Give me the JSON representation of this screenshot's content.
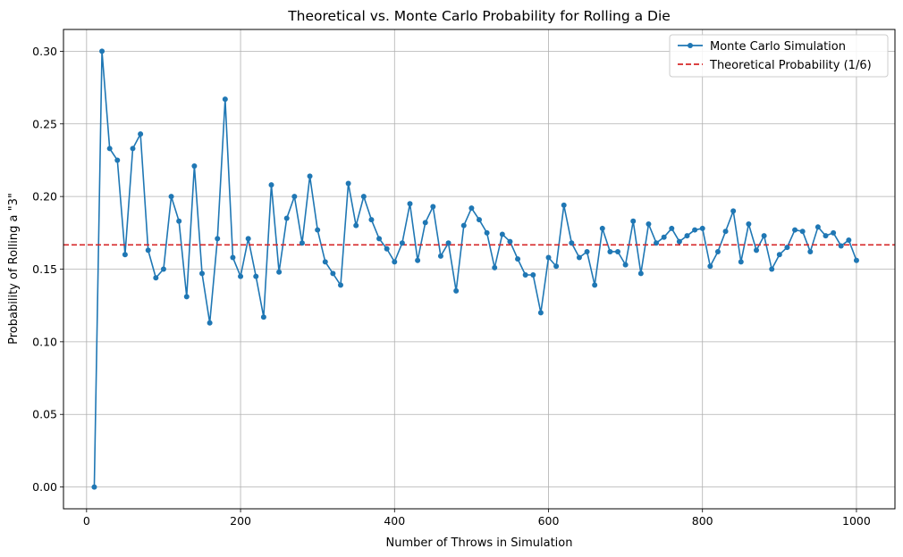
{
  "chart_data": {
    "type": "line",
    "title": "Theoretical vs. Monte Carlo Probability for Rolling a Die",
    "xlabel": "Number of Throws in Simulation",
    "ylabel": "Probability of Rolling a \"3\"",
    "xlim": [
      -30,
      1050
    ],
    "ylim": [
      -0.015,
      0.315
    ],
    "xticks": [
      0,
      200,
      400,
      600,
      800,
      1000
    ],
    "xtick_labels": [
      "0",
      "200",
      "400",
      "600",
      "800",
      "1000"
    ],
    "yticks": [
      0.0,
      0.05,
      0.1,
      0.15,
      0.2,
      0.25,
      0.3
    ],
    "ytick_labels": [
      "0.00",
      "0.05",
      "0.10",
      "0.15",
      "0.20",
      "0.25",
      "0.30"
    ],
    "grid": true,
    "legend_position": "top-right",
    "series": [
      {
        "name": "Monte Carlo Simulation",
        "color": "#1f77b4",
        "style": "solid-with-circle-markers",
        "x": [
          10,
          20,
          30,
          40,
          50,
          60,
          70,
          80,
          90,
          100,
          110,
          120,
          130,
          140,
          150,
          160,
          170,
          180,
          190,
          200,
          210,
          220,
          230,
          240,
          250,
          260,
          270,
          280,
          290,
          300,
          310,
          320,
          330,
          340,
          350,
          360,
          370,
          380,
          390,
          400,
          410,
          420,
          430,
          440,
          450,
          460,
          470,
          480,
          490,
          500,
          510,
          520,
          530,
          540,
          550,
          560,
          570,
          580,
          590,
          600,
          610,
          620,
          630,
          640,
          650,
          660,
          670,
          680,
          690,
          700,
          710,
          720,
          730,
          740,
          750,
          760,
          770,
          780,
          790,
          800,
          810,
          820,
          830,
          840,
          850,
          860,
          870,
          880,
          890,
          900,
          910,
          920,
          930,
          940,
          950,
          960,
          970,
          980,
          990,
          1000
        ],
        "y": [
          0.0,
          0.3,
          0.233,
          0.225,
          0.16,
          0.233,
          0.243,
          0.163,
          0.144,
          0.15,
          0.2,
          0.183,
          0.131,
          0.221,
          0.147,
          0.113,
          0.171,
          0.267,
          0.158,
          0.145,
          0.171,
          0.145,
          0.117,
          0.208,
          0.148,
          0.185,
          0.2,
          0.168,
          0.214,
          0.177,
          0.155,
          0.147,
          0.139,
          0.209,
          0.18,
          0.2,
          0.184,
          0.171,
          0.164,
          0.155,
          0.168,
          0.195,
          0.156,
          0.182,
          0.193,
          0.159,
          0.168,
          0.135,
          0.18,
          0.192,
          0.184,
          0.175,
          0.151,
          0.174,
          0.169,
          0.157,
          0.146,
          0.146,
          0.12,
          0.158,
          0.152,
          0.194,
          0.168,
          0.158,
          0.162,
          0.139,
          0.178,
          0.162,
          0.162,
          0.153,
          0.183,
          0.147,
          0.181,
          0.168,
          0.172,
          0.178,
          0.169,
          0.173,
          0.177,
          0.178,
          0.152,
          0.162,
          0.176,
          0.19,
          0.155,
          0.181,
          0.163,
          0.173,
          0.15,
          0.16,
          0.165,
          0.177,
          0.176,
          0.162,
          0.179,
          0.173,
          0.175,
          0.166,
          0.17,
          0.156
        ]
      },
      {
        "name": "Theoretical Probability (1/6)",
        "color": "#d62728",
        "style": "dashed",
        "y_constant": 0.1667
      }
    ]
  }
}
